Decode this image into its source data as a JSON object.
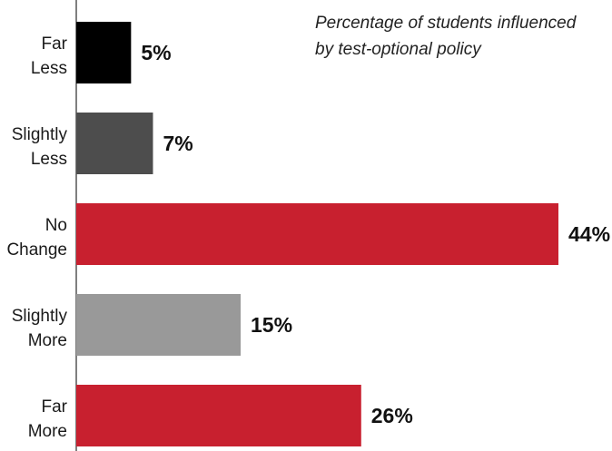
{
  "chart_data": {
    "type": "bar",
    "orientation": "horizontal",
    "title": "Percentage of students influenced by test-optional policy",
    "title_lines": [
      "Percentage of students influenced",
      "by test-optional policy"
    ],
    "categories": [
      "Far Less",
      "Slightly Less",
      "No Change",
      "Slightly More",
      "Far More"
    ],
    "category_lines": [
      [
        "Far",
        "Less"
      ],
      [
        "Slightly",
        "Less"
      ],
      [
        "No",
        "Change"
      ],
      [
        "Slightly",
        "More"
      ],
      [
        "Far",
        "More"
      ]
    ],
    "values": [
      5,
      7,
      44,
      15,
      26
    ],
    "value_labels": [
      "5%",
      "7%",
      "44%",
      "15%",
      "26%"
    ],
    "colors": [
      "#000000",
      "#4d4d4d",
      "#c8202f",
      "#999999",
      "#c8202f"
    ],
    "xlim": [
      0,
      44
    ],
    "unit": "%",
    "grid": false,
    "legend": "none"
  }
}
